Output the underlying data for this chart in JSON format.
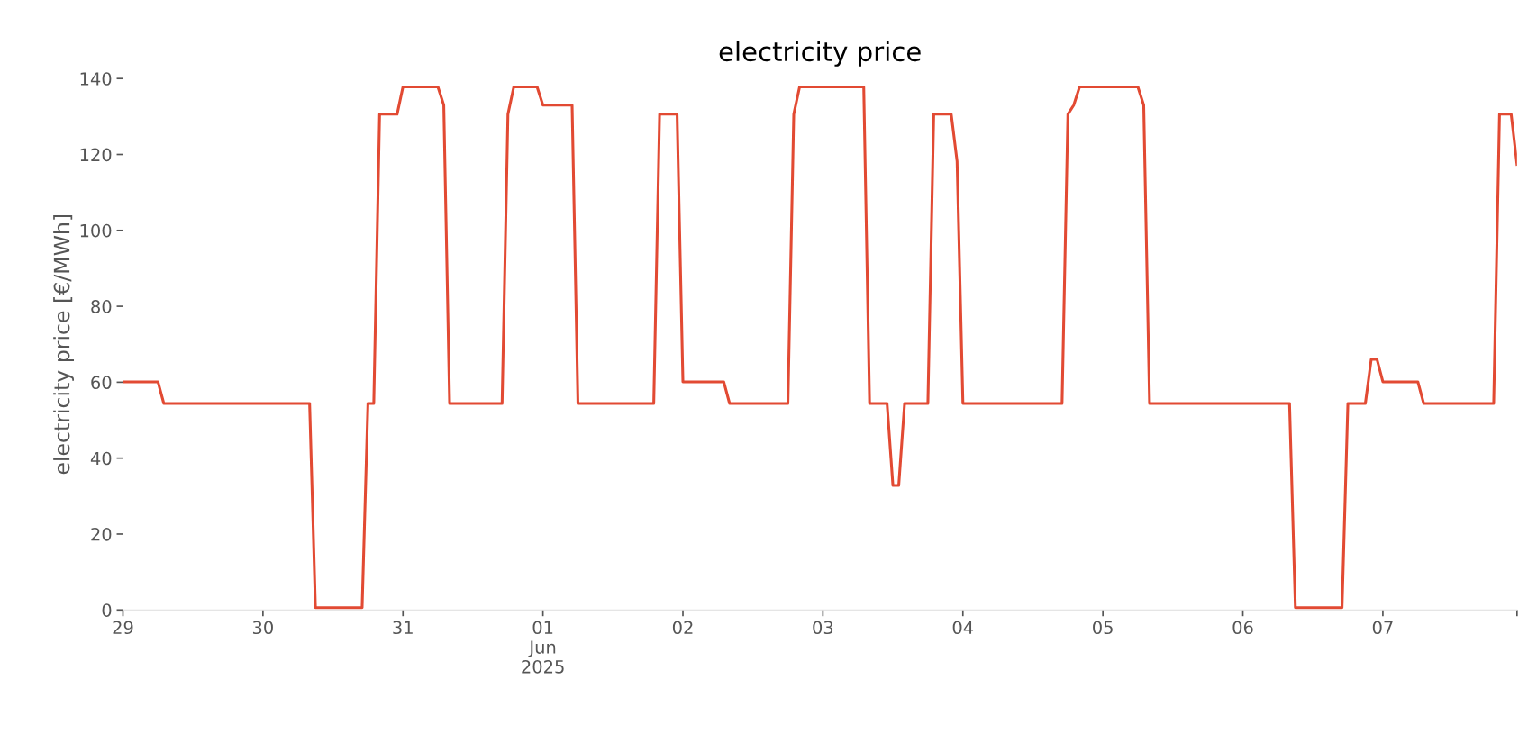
{
  "chart_data": {
    "type": "line",
    "title": "electricity price",
    "ylabel": "electricity price [€/MWh]",
    "x": [
      "2025-05-29T00:00",
      "2025-05-29T06:00",
      "2025-05-29T07:00",
      "2025-05-30T08:00",
      "2025-05-30T09:00",
      "2025-05-30T17:00",
      "2025-05-30T18:00",
      "2025-05-30T19:00",
      "2025-05-30T20:00",
      "2025-05-30T23:00",
      "2025-05-31T00:00",
      "2025-05-31T06:00",
      "2025-05-31T07:00",
      "2025-05-31T08:00",
      "2025-05-31T17:00",
      "2025-05-31T18:00",
      "2025-05-31T19:00",
      "2025-05-31T23:00",
      "2025-06-01T00:00",
      "2025-06-01T05:00",
      "2025-06-01T06:00",
      "2025-06-01T19:00",
      "2025-06-01T20:00",
      "2025-06-01T23:00",
      "2025-06-02T00:00",
      "2025-06-02T07:00",
      "2025-06-02T08:00",
      "2025-06-02T18:00",
      "2025-06-02T19:00",
      "2025-06-02T20:00",
      "2025-06-03T07:00",
      "2025-06-03T08:00",
      "2025-06-03T11:00",
      "2025-06-03T12:00",
      "2025-06-03T13:00",
      "2025-06-03T14:00",
      "2025-06-03T18:00",
      "2025-06-03T19:00",
      "2025-06-03T22:00",
      "2025-06-03T23:00",
      "2025-06-04T00:00",
      "2025-06-04T17:00",
      "2025-06-04T18:00",
      "2025-06-04T19:00",
      "2025-06-04T20:00",
      "2025-06-05T06:00",
      "2025-06-05T07:00",
      "2025-06-05T08:00",
      "2025-06-06T08:00",
      "2025-06-06T09:00",
      "2025-06-06T17:00",
      "2025-06-06T18:00",
      "2025-06-06T21:00",
      "2025-06-06T22:00",
      "2025-06-06T23:00",
      "2025-06-07T00:00",
      "2025-06-07T06:00",
      "2025-06-07T07:00",
      "2025-06-07T19:00",
      "2025-06-07T20:00",
      "2025-06-07T22:00",
      "2025-06-07T23:00"
    ],
    "series": [
      {
        "color": "#e24a33",
        "values": [
          60.1,
          60.1,
          54.4,
          54.4,
          0.6,
          0.6,
          54.4,
          54.4,
          130.6,
          130.6,
          137.8,
          137.8,
          133.0,
          54.4,
          54.4,
          130.6,
          137.8,
          137.8,
          133.0,
          133.0,
          54.4,
          54.4,
          130.6,
          130.6,
          60.1,
          60.1,
          54.4,
          54.4,
          130.6,
          137.8,
          137.8,
          54.4,
          54.4,
          32.8,
          32.8,
          54.4,
          54.4,
          130.6,
          130.6,
          118.2,
          54.4,
          54.4,
          130.6,
          133.0,
          137.8,
          137.8,
          133.0,
          54.4,
          54.4,
          0.6,
          0.6,
          54.4,
          54.4,
          66.0,
          66.0,
          60.1,
          60.1,
          54.4,
          54.4,
          130.6,
          130.6,
          117.4
        ]
      }
    ],
    "xticks": [
      {
        "value": "2025-05-29",
        "label": "29"
      },
      {
        "value": "2025-05-30",
        "label": "30"
      },
      {
        "value": "2025-05-31",
        "label": "31"
      },
      {
        "value": "2025-06-01",
        "label": "01\nJun\n2025"
      },
      {
        "value": "2025-06-02",
        "label": "02"
      },
      {
        "value": "2025-06-03",
        "label": "03"
      },
      {
        "value": "2025-06-04",
        "label": "04"
      },
      {
        "value": "2025-06-05",
        "label": "05"
      },
      {
        "value": "2025-06-06",
        "label": "06"
      },
      {
        "value": "2025-06-07",
        "label": "07"
      },
      {
        "value": "2025-06-07T23:00",
        "label": null
      }
    ],
    "xlim": [
      "2025-05-29T00:00",
      "2025-06-07T23:00"
    ],
    "ylim": [
      0,
      140
    ],
    "yticks": [
      0,
      20,
      40,
      60,
      80,
      100,
      120,
      140
    ],
    "grid": false,
    "legend": false,
    "marker": "none",
    "line_style": "solid"
  }
}
